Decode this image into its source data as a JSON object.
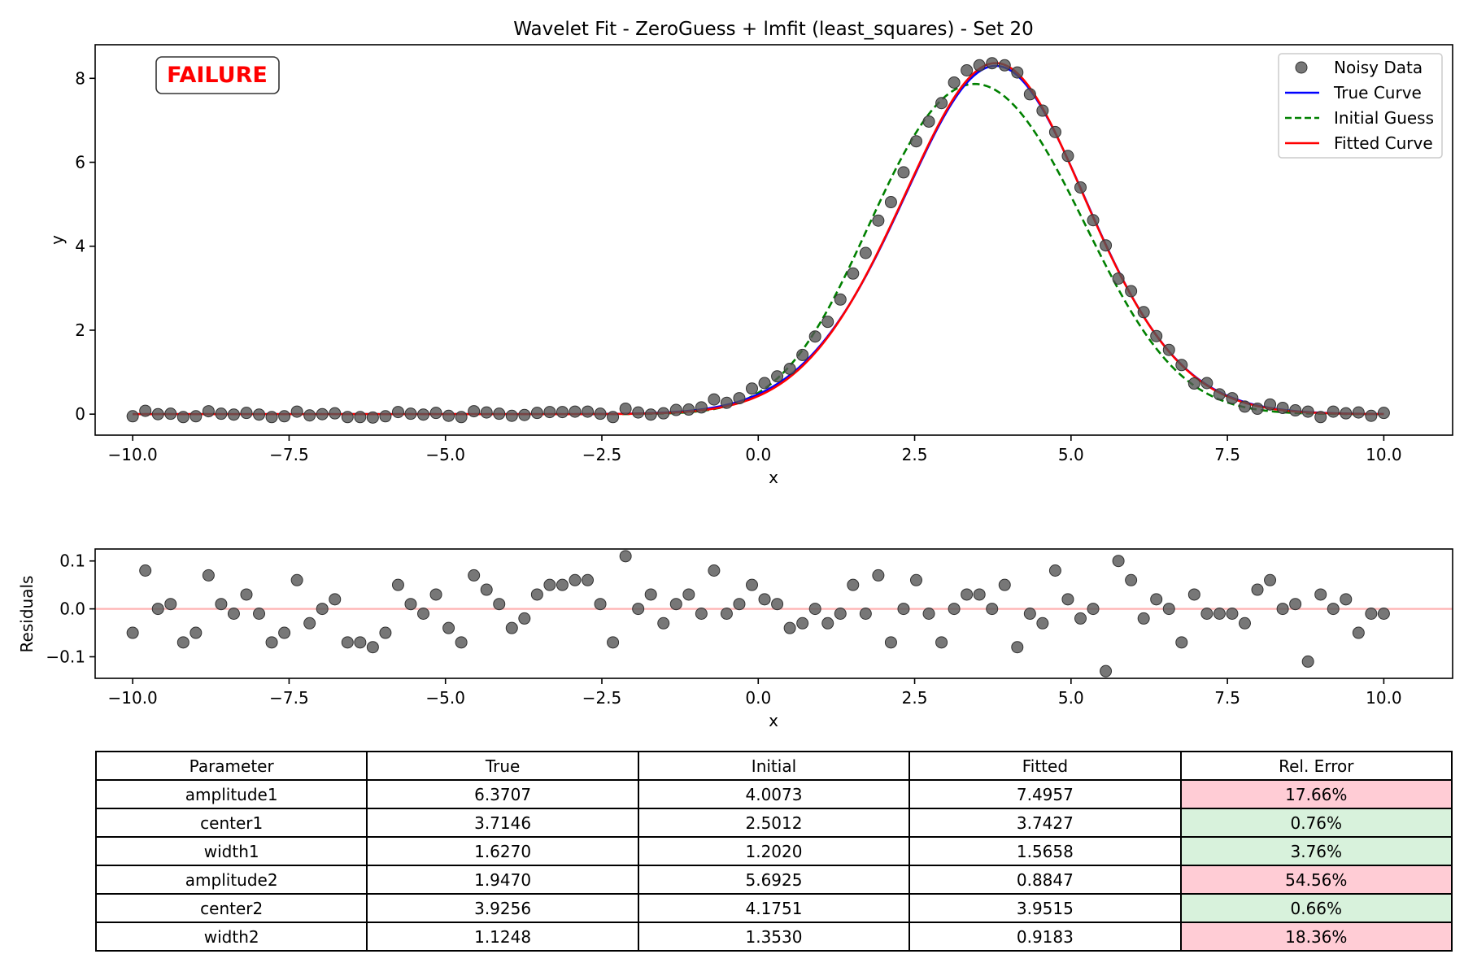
{
  "chart_data": [
    {
      "type": "scatter+line",
      "title": "Wavelet Fit - ZeroGuess + lmfit (least_squares) - Set 20",
      "xlabel": "x",
      "ylabel": "y",
      "xlim": [
        -10.6,
        11.1
      ],
      "ylim": [
        -0.5,
        8.8
      ],
      "xticks": [
        -10.0,
        -7.5,
        -5.0,
        -2.5,
        0.0,
        2.5,
        5.0,
        7.5,
        10.0
      ],
      "xtick_labels": [
        "−10.0",
        "−7.5",
        "−5.0",
        "−2.5",
        "0.0",
        "2.5",
        "5.0",
        "7.5",
        "10.0"
      ],
      "yticks": [
        0,
        2,
        4,
        6,
        8
      ],
      "ytick_labels": [
        "0",
        "2",
        "4",
        "6",
        "8"
      ],
      "grid": false,
      "legend_position": "top-right",
      "status_badge": "FAILURE",
      "status_color": "#ff0000",
      "series": [
        {
          "name": "Noisy Data",
          "style": "scatter",
          "color": "#555555",
          "x_range": [
            -10,
            10
          ],
          "n_points": 100,
          "y": [
            -0.05,
            0.08,
            0,
            0.01,
            -0.07,
            -0.05,
            0.07,
            0.01,
            -0.01,
            0.03,
            -0.01,
            -0.07,
            -0.05,
            0.06,
            -0.03,
            0,
            0.02,
            -0.07,
            -0.07,
            -0.08,
            -0.05,
            0.05,
            0.01,
            -0.01,
            0.03,
            -0.04,
            -0.07,
            0.07,
            0.04,
            0.01,
            -0.04,
            -0.02,
            0.03,
            0.05,
            0.05,
            0.06,
            0.06,
            0.01,
            -0.07,
            0.13,
            0.04,
            -0.01,
            0.02,
            0.1,
            0.11,
            0.16,
            0.35,
            0.27,
            0.38,
            0.61,
            0.74,
            0.9,
            1.08,
            1.41,
            1.85,
            2.2,
            2.73,
            3.35,
            3.84,
            4.61,
            5.05,
            5.76,
            6.5,
            6.97,
            7.41,
            7.9,
            8.19,
            8.31,
            8.36,
            8.31,
            8.14,
            7.62,
            7.23,
            6.72,
            6.15,
            5.4,
            4.62,
            4.02,
            3.23,
            2.93,
            2.43,
            1.86,
            1.53,
            1.17,
            0.73,
            0.74,
            0.47,
            0.38,
            0.18,
            0.13,
            0.23,
            0.15,
            0.09,
            0.06,
            -0.07,
            0.06,
            0.02,
            0.04,
            -0.04,
            0.03
          ]
        },
        {
          "name": "True Curve",
          "style": "line",
          "color": "#0000ff",
          "params": {
            "amplitude1": 6.3707,
            "center1": 3.7146,
            "width1": 1.627,
            "amplitude2": 1.947,
            "center2": 3.9256,
            "width2": 1.1248
          }
        },
        {
          "name": "Initial Guess",
          "style": "dashed",
          "color": "#008000",
          "params": {
            "amplitude1": 4.0073,
            "center1": 2.5012,
            "width1": 1.202,
            "amplitude2": 5.6925,
            "center2": 4.1751,
            "width2": 1.353
          }
        },
        {
          "name": "Fitted Curve",
          "style": "line",
          "color": "#ff0000",
          "params": {
            "amplitude1": 7.4957,
            "center1": 3.7427,
            "width1": 1.5658,
            "amplitude2": 0.8847,
            "center2": 3.9515,
            "width2": 0.9183
          }
        }
      ]
    },
    {
      "type": "scatter",
      "title": "",
      "xlabel": "x",
      "ylabel": "Residuals",
      "xlim": [
        -10.6,
        11.1
      ],
      "ylim": [
        -0.145,
        0.125
      ],
      "xticks": [
        -10.0,
        -7.5,
        -5.0,
        -2.5,
        0.0,
        2.5,
        5.0,
        7.5,
        10.0
      ],
      "xtick_labels": [
        "−10.0",
        "−7.5",
        "−5.0",
        "−2.5",
        "0.0",
        "2.5",
        "5.0",
        "7.5",
        "10.0"
      ],
      "yticks": [
        0.1,
        0.0,
        -0.1
      ],
      "ytick_labels": [
        "0.1",
        "0.0",
        "−0.1"
      ],
      "zero_line_color": "#ffb3b3",
      "series": [
        {
          "name": "Residuals",
          "style": "scatter",
          "color": "#555555",
          "x_range": [
            -10,
            10
          ],
          "n_points": 100,
          "y": [
            -0.05,
            0.08,
            0,
            0.01,
            -0.07,
            -0.05,
            0.07,
            0.01,
            -0.01,
            0.03,
            -0.01,
            -0.07,
            -0.05,
            0.06,
            -0.03,
            0,
            0.02,
            -0.07,
            -0.07,
            -0.08,
            -0.05,
            0.05,
            0.01,
            -0.01,
            0.03,
            -0.04,
            -0.07,
            0.07,
            0.04,
            0.01,
            -0.04,
            -0.02,
            0.03,
            0.05,
            0.05,
            0.06,
            0.06,
            0.01,
            -0.07,
            0.11,
            0,
            0.03,
            -0.03,
            0.01,
            0.03,
            -0.01,
            0.08,
            -0.01,
            0.01,
            0.05,
            0.02,
            0.01,
            -0.04,
            -0.03,
            0,
            -0.03,
            -0.01,
            0.05,
            -0.01,
            0.07,
            -0.07,
            0,
            0.06,
            -0.01,
            -0.07,
            0,
            0.03,
            0.03,
            0,
            0.05,
            -0.08,
            -0.01,
            -0.03,
            0.08,
            0.02,
            -0.02,
            0,
            -0.13,
            0.1,
            0.06,
            -0.02,
            0.02,
            0,
            -0.07,
            0.03,
            -0.01,
            -0.01,
            -0.01,
            -0.03,
            0.04,
            0.06,
            0,
            0.01,
            -0.11,
            0.03,
            0,
            0.02,
            -0.05,
            -0.01,
            -0.01
          ]
        }
      ]
    },
    {
      "type": "table",
      "columns": [
        "Parameter",
        "True",
        "Initial",
        "Fitted",
        "Rel. Error"
      ],
      "rows": [
        {
          "cells": [
            "amplitude1",
            "6.3707",
            "4.0073",
            "7.4957",
            "17.66%"
          ],
          "status": "bad"
        },
        {
          "cells": [
            "center1",
            "3.7146",
            "2.5012",
            "3.7427",
            "0.76%"
          ],
          "status": "good"
        },
        {
          "cells": [
            "width1",
            "1.6270",
            "1.2020",
            "1.5658",
            "3.76%"
          ],
          "status": "good"
        },
        {
          "cells": [
            "amplitude2",
            "1.9470",
            "5.6925",
            "0.8847",
            "54.56%"
          ],
          "status": "bad"
        },
        {
          "cells": [
            "center2",
            "3.9256",
            "4.1751",
            "3.9515",
            "0.66%"
          ],
          "status": "good"
        },
        {
          "cells": [
            "width2",
            "1.1248",
            "1.3530",
            "0.9183",
            "18.36%"
          ],
          "status": "bad"
        }
      ],
      "status_colors": {
        "bad": "#ffccd5",
        "good": "#d8f2dc"
      }
    }
  ]
}
